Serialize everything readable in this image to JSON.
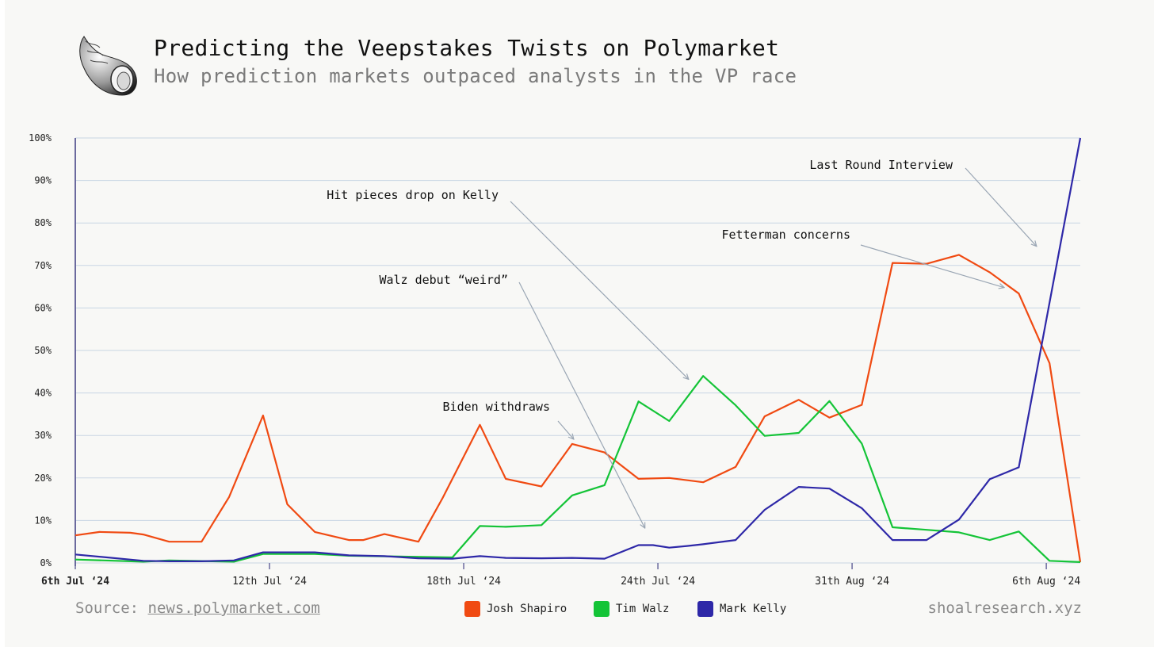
{
  "header": {
    "title": "Predicting the Veepstakes Twists on Polymarket",
    "subtitle": "How prediction markets outpaced analysts in the VP race"
  },
  "footer": {
    "source_prefix": "Source: ",
    "source_link": "news.polymarket.com",
    "site": "shoalresearch.xyz"
  },
  "colors": {
    "shapiro": "#f04a12",
    "walz": "#14c437",
    "kelly": "#2e28a8",
    "grid": "#c9d6e3",
    "axis": "#6b6a9e",
    "annotation_arrow": "#9aa6b4"
  },
  "chart_data": {
    "type": "line",
    "x": [
      "Jul 6",
      "Jul 6.5",
      "Jul 7",
      "Jul 7.5",
      "Jul 8",
      "Jul 8.5",
      "Jul 9",
      "Jul 9.5",
      "Jul 10",
      "Jul 10.5",
      "Jul 11",
      "Jul 11.5",
      "Jul 12",
      "Jul 12.5",
      "Jul 13",
      "Jul 13.5",
      "Jul 14",
      "Jul 14.5",
      "Jul 15",
      "Jul 15.5",
      "Jul 16",
      "Jul 16.5",
      "Jul 17",
      "Jul 17.5",
      "Jul 18",
      "Jul 18.5",
      "Jul 19",
      "Jul 19.5",
      "Jul 20",
      "Jul 20.5",
      "Jul 21",
      "Jul 21.5",
      "Jul 22",
      "Jul 22.5",
      "Jul 23",
      "Jul 23.5",
      "Jul 24",
      "Jul 24.5",
      "Jul 25",
      "Jul 25.5",
      "Jul 26",
      "Jul 26.5",
      "Jul 27",
      "Jul 27.5",
      "Jul 28",
      "Jul 28.5",
      "Jul 29",
      "Jul 29.5",
      "Jul 30",
      "Jul 30.5",
      "Jul 31",
      "Jul 31.5",
      "Aug 1",
      "Aug 1.5",
      "Aug 2",
      "Aug 2.5",
      "Aug 3",
      "Aug 3.5",
      "Aug 4",
      "Aug 4.5",
      "Aug 5",
      "Aug 5.5",
      "Aug 6",
      "Aug 6.5"
    ],
    "x_ticks": [
      "6th Jul ‘24",
      "12th Jul ‘24",
      "18th Jul ‘24",
      "24th Jul ‘24",
      "31th Aug ‘24",
      "6th Aug ‘24"
    ],
    "x_tick_positions": [
      0,
      12,
      24,
      36,
      48,
      60
    ],
    "ylim": [
      0,
      100
    ],
    "y_ticks": [
      "0%",
      "10%",
      "20%",
      "30%",
      "40%",
      "50%",
      "60%",
      "70%",
      "80%",
      "90%",
      "100%"
    ],
    "grid": true,
    "series": [
      {
        "name": "Josh Shapiro",
        "color": "#f04a12",
        "points": [
          [
            0,
            6.5
          ],
          [
            1.5,
            7.3
          ],
          [
            3.4,
            7.1
          ],
          [
            4.2,
            6.7
          ],
          [
            5.8,
            5
          ],
          [
            7.8,
            5
          ],
          [
            9.5,
            15.5
          ],
          [
            11.6,
            34.7
          ],
          [
            13.1,
            13.8
          ],
          [
            14.8,
            7.3
          ],
          [
            16.9,
            5.4
          ],
          [
            17.8,
            5.4
          ],
          [
            19.1,
            6.8
          ],
          [
            21.2,
            5
          ],
          [
            22.7,
            15.3
          ],
          [
            25,
            32.5
          ],
          [
            26.6,
            19.8
          ],
          [
            28.8,
            18
          ],
          [
            30.7,
            28
          ],
          [
            32.7,
            26
          ],
          [
            34.8,
            19.8
          ],
          [
            36.7,
            20
          ],
          [
            38.8,
            19
          ],
          [
            40.8,
            22.6
          ],
          [
            42.6,
            34.5
          ],
          [
            44.7,
            38.4
          ],
          [
            46.6,
            34.2
          ],
          [
            48.6,
            37.2
          ],
          [
            50.5,
            70.6
          ],
          [
            52.6,
            70.4
          ],
          [
            54.6,
            72.5
          ],
          [
            56.5,
            68.4
          ],
          [
            58.3,
            63.4
          ],
          [
            60.2,
            47
          ],
          [
            62.1,
            0.2
          ]
        ]
      },
      {
        "name": "Tim Walz",
        "color": "#14c437",
        "points": [
          [
            0,
            0.8
          ],
          [
            4.2,
            0.3
          ],
          [
            5.8,
            0.6
          ],
          [
            9.8,
            0.3
          ],
          [
            11.6,
            2.1
          ],
          [
            14.8,
            2.1
          ],
          [
            16.9,
            1.7
          ],
          [
            23.3,
            1.3
          ],
          [
            25,
            8.7
          ],
          [
            26.6,
            8.5
          ],
          [
            28.8,
            8.9
          ],
          [
            30.7,
            15.9
          ],
          [
            32.7,
            18.3
          ],
          [
            34.8,
            38
          ],
          [
            36.7,
            33.4
          ],
          [
            38.8,
            44
          ],
          [
            40.8,
            37.1
          ],
          [
            42.6,
            29.9
          ],
          [
            44.7,
            30.6
          ],
          [
            46.6,
            38.1
          ],
          [
            48.6,
            28.1
          ],
          [
            50.5,
            8.4
          ],
          [
            52.6,
            7.8
          ],
          [
            54.6,
            7.2
          ],
          [
            56.5,
            5.4
          ],
          [
            58.3,
            7.4
          ],
          [
            60.2,
            0.5
          ],
          [
            62.1,
            0.2
          ]
        ]
      },
      {
        "name": "Mark Kelly",
        "color": "#2e28a8",
        "points": [
          [
            0,
            2
          ],
          [
            4.2,
            0.5
          ],
          [
            5.8,
            0.4
          ],
          [
            7.8,
            0.4
          ],
          [
            9.8,
            0.6
          ],
          [
            11.6,
            2.5
          ],
          [
            14.8,
            2.5
          ],
          [
            16.9,
            1.8
          ],
          [
            19.1,
            1.6
          ],
          [
            21.2,
            1.1
          ],
          [
            23.3,
            1
          ],
          [
            25,
            1.6
          ],
          [
            26.6,
            1.2
          ],
          [
            28.8,
            1.1
          ],
          [
            30.7,
            1.2
          ],
          [
            32.7,
            1
          ],
          [
            34.8,
            4.2
          ],
          [
            35.7,
            4.2
          ],
          [
            36.7,
            3.6
          ],
          [
            37.8,
            4
          ],
          [
            38.8,
            4.4
          ],
          [
            40.8,
            5.4
          ],
          [
            42.6,
            12.5
          ],
          [
            44.7,
            17.9
          ],
          [
            46.6,
            17.5
          ],
          [
            48.6,
            12.9
          ],
          [
            50.5,
            5.4
          ],
          [
            52.6,
            5.4
          ],
          [
            54.6,
            10.2
          ],
          [
            56.5,
            19.7
          ],
          [
            58.3,
            22.5
          ],
          [
            62.1,
            100
          ]
        ]
      }
    ],
    "annotations": [
      {
        "text": "Last Round Interview",
        "point_to": [
          59.4,
          74.5
        ]
      },
      {
        "text": "Hit pieces drop on Kelly",
        "point_to": [
          37.9,
          43.2
        ]
      },
      {
        "text": "Fetterman concerns",
        "point_to": [
          57.4,
          64.8
        ]
      },
      {
        "text": "Walz debut “weird”",
        "point_to": [
          35.2,
          8.2
        ]
      },
      {
        "text": "Biden withdraws",
        "point_to": [
          30.8,
          29.1
        ]
      }
    ],
    "legend": {
      "placement": "bottom-center"
    }
  }
}
